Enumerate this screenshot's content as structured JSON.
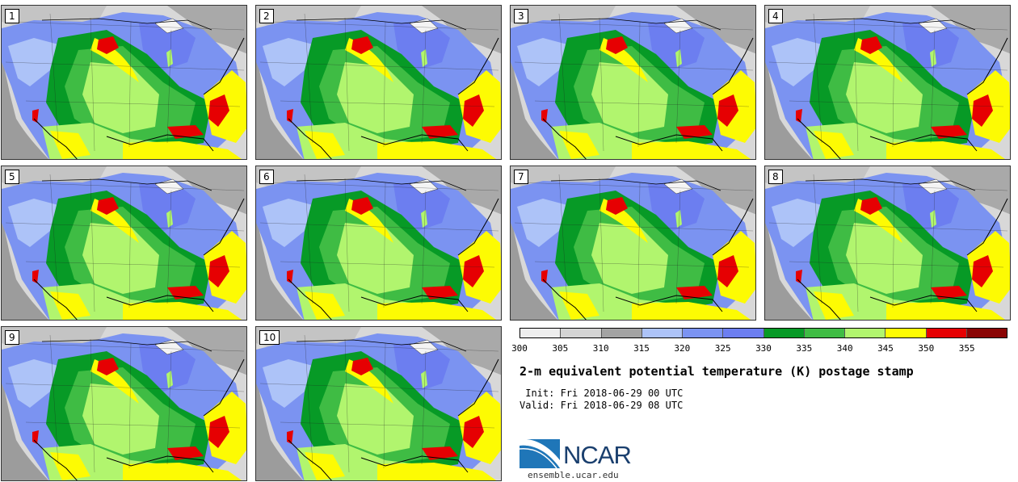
{
  "members": [
    "1",
    "2",
    "3",
    "4",
    "5",
    "6",
    "7",
    "8",
    "9",
    "10"
  ],
  "colorbar": {
    "colors": [
      "#eeeeee",
      "#d4d4d4",
      "#a3a3a3",
      "#adc3f8",
      "#7b93f1",
      "#6c7ef0",
      "#079a26",
      "#3fbc44",
      "#b1f56e",
      "#fdfb03",
      "#e60002",
      "#8a0404"
    ],
    "tick_labels": [
      "300",
      "305",
      "310",
      "315",
      "320",
      "325",
      "330",
      "335",
      "340",
      "345",
      "350",
      "355"
    ]
  },
  "title": "2-m equivalent potential temperature (K) postage stamp",
  "init": " Init: Fri 2018-06-29 00 UTC",
  "valid": "Valid: Fri 2018-06-29 08 UTC",
  "logo": {
    "text": "NCAR",
    "url": "ensemble.ucar.edu"
  }
}
